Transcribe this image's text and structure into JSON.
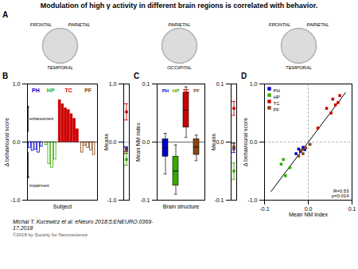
{
  "title": "Modulation of high γ activity in different brain regions is correlated with behavior.",
  "annotations": [
    "Michal T. Kucewicz et al. eNeuro 2018;5:ENEURO.0369-\n17.2018",
    "©2018 by Society for Neuroscience"
  ],
  "chart_data": [
    {
      "type": "diagram",
      "title": "A",
      "annotations": [
        [
          "FRONTAL",
          "PARIETAL",
          "TEMPORAL"
        ],
        [
          "PARIETAL",
          "OCCIPITAL"
        ],
        [
          "FRONTAL",
          "PARIETAL",
          "TEMPORAL"
        ]
      ]
    },
    {
      "type": "bar",
      "title": "B",
      "xlabel": "Subject",
      "ylabel": "Δ behavioural score",
      "series": [
        {
          "name": "PH",
          "color": "#0000cc",
          "values": [
            -0.1,
            -0.15,
            -0.13,
            -0.18,
            -0.08
          ]
        },
        {
          "name": "HP",
          "color": "#33aa00",
          "values": [
            -0.05,
            -0.38,
            -0.44,
            -0.3
          ]
        },
        {
          "name": "TC",
          "color": "#cc0000",
          "values": [
            0.72,
            0.65,
            0.58,
            0.55,
            0.48,
            0.4,
            0.22
          ]
        },
        {
          "name": "PF",
          "color": "#8b4513",
          "values": [
            -0.18,
            -0.06,
            -0.1,
            -0.14,
            -0.22
          ]
        }
      ],
      "ylim": [
        -1.0,
        1.0
      ],
      "yticks": [
        {
          "value": -1.0,
          "label": "-1.0"
        },
        {
          "value": 0.0,
          "label": "0.0"
        },
        {
          "value": 1.0,
          "label": "1.0"
        }
      ],
      "tick_labels": "y",
      "hlines": [
        0
      ],
      "annotations": [
        "enhancement",
        "impairment"
      ]
    },
    {
      "type": "errorbar",
      "ylabel": "Means",
      "series": [
        {
          "color": "#cc0000",
          "values": [
            0.52
          ],
          "errors": [
            0.14
          ]
        },
        {
          "color": "#0000cc",
          "values": [
            -0.12
          ],
          "errors": [
            0.04
          ]
        },
        {
          "color": "#33aa00",
          "values": [
            -0.3
          ],
          "errors": [
            0.1
          ]
        },
        {
          "color": "#8b4513",
          "values": [
            -0.14
          ],
          "errors": [
            0.05
          ]
        }
      ],
      "ylim": [
        -1.0,
        1.0
      ],
      "yticks": [
        {
          "value": -1.0,
          "label": "-1.0"
        },
        {
          "value": 0.0,
          "label": "0.0"
        },
        {
          "value": 1.0,
          "label": "1.0"
        }
      ],
      "tick_labels": "y",
      "marker": "square",
      "hlines": [
        0
      ]
    },
    {
      "type": "box",
      "title": "C",
      "xlabel": "Brain structure",
      "ylabel": "Mean NM index",
      "categories": [
        "PH",
        "HP",
        "TC",
        "PF"
      ],
      "colors": [
        "#0000cc",
        "#33aa00",
        "#cc0000",
        "#8b4513"
      ],
      "boxes": [
        {
          "q1": -0.025,
          "q3": 0.005,
          "median": -0.01,
          "whisker_low": -0.055,
          "whisker_high": 0.015
        },
        {
          "q1": -0.075,
          "q3": -0.025,
          "median": -0.05,
          "whisker_low": -0.09,
          "whisker_high": -0.005
        },
        {
          "q1": 0.025,
          "q3": 0.085,
          "median": 0.055,
          "whisker_low": 0.008,
          "whisker_high": 0.095
        },
        {
          "q1": -0.022,
          "q3": 0.005,
          "median": -0.0085,
          "whisker_low": -0.032,
          "whisker_high": 0.012
        }
      ],
      "ylim": [
        -0.1,
        0.1
      ],
      "yticks": [
        -0.1,
        {
          "value": 0.0,
          "label": "0.0"
        },
        0.1
      ],
      "tick_labels": "y",
      "hlines": [
        0
      ]
    },
    {
      "type": "errorbar",
      "ylabel": "Means",
      "series": [
        {
          "color": "#cc0000",
          "values": [
            0.058
          ],
          "errors": [
            0.012
          ]
        },
        {
          "color": "#0000cc",
          "values": [
            -0.01
          ],
          "errors": [
            0.008
          ]
        },
        {
          "color": "#33aa00",
          "values": [
            -0.05
          ],
          "errors": [
            0.014
          ]
        },
        {
          "color": "#8b4513",
          "values": [
            -0.008
          ],
          "errors": [
            0.006
          ]
        }
      ],
      "ylim": [
        -0.1,
        0.1
      ],
      "yticks": [
        -0.1,
        {
          "value": 0.0,
          "label": "0.0"
        },
        0.1
      ],
      "tick_labels": "y",
      "marker": "square",
      "hlines": [
        0
      ]
    },
    {
      "type": "scatter",
      "title": "D",
      "xlabel": "Mean NM index",
      "ylabel": "Δ behavioural score",
      "series": [
        {
          "name": "PH",
          "color": "#0000cc",
          "x": [
            -0.022,
            -0.018,
            -0.012,
            -0.008,
            -0.028
          ],
          "y": [
            -0.12,
            -0.16,
            -0.09,
            -0.13,
            -0.2
          ]
        },
        {
          "name": "HP",
          "color": "#33aa00",
          "x": [
            -0.062,
            -0.052,
            -0.042,
            -0.057
          ],
          "y": [
            -0.38,
            -0.58,
            -0.44,
            -0.3
          ]
        },
        {
          "name": "TC",
          "color": "#cc0000",
          "x": [
            0.042,
            0.056,
            0.062,
            0.072,
            0.052,
            0.068,
            0.022
          ],
          "y": [
            0.58,
            0.74,
            0.64,
            0.8,
            0.5,
            0.68,
            0.24
          ]
        },
        {
          "name": "PF",
          "color": "#8b4513",
          "x": [
            -0.012,
            0.004,
            -0.006,
            -0.022,
            -0.016
          ],
          "y": [
            -0.2,
            -0.04,
            -0.1,
            -0.24,
            -0.14
          ]
        }
      ],
      "regression": {
        "x": [
          -0.085,
          0.085
        ],
        "y": [
          -0.85,
          0.85
        ]
      },
      "xlim": [
        -0.1,
        0.1
      ],
      "ylim": [
        -1.0,
        1.0
      ],
      "xticks": [
        -0.1,
        {
          "value": 0.0,
          "label": "0.0"
        },
        0.1
      ],
      "yticks": [
        {
          "value": -1.0,
          "label": "-1.0"
        },
        {
          "value": 0.0,
          "label": "0.0"
        },
        {
          "value": 1.0,
          "label": "1.0"
        }
      ],
      "hlines": [
        0
      ],
      "vlines": [
        0
      ],
      "annotations": [
        "R=0.53\np=0.014"
      ],
      "legend": "upper left",
      "marker": "square"
    }
  ]
}
